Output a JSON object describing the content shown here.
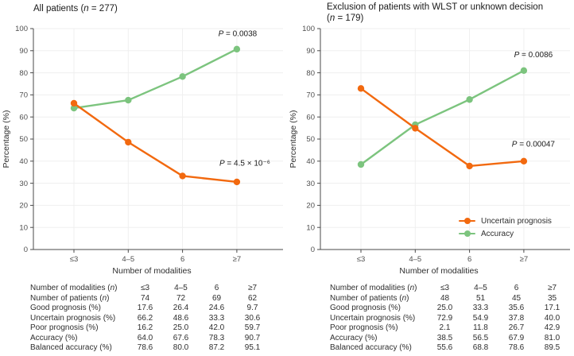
{
  "figure": {
    "y_axis_label": "Percentage (%)",
    "x_axis_label": "Number of modalities",
    "colors": {
      "uncertain_prognosis": "#f2690f",
      "accuracy": "#7cc47e",
      "axis": "#4a4a4a",
      "grid": "#efefef",
      "text": "#2e2e2e"
    },
    "legend": {
      "position": "lower-right-of-second-chart",
      "items": [
        {
          "label": "Uncertain prognosis",
          "series": "uncertain_prognosis"
        },
        {
          "label": "Accuracy",
          "series": "accuracy"
        }
      ]
    }
  },
  "chart_data": [
    {
      "type": "line",
      "title": "All patients (n = 277)",
      "title_lines": [
        "All patients (n = 277)"
      ],
      "categories": [
        "≤3",
        "4–5",
        "6",
        "≥7"
      ],
      "xlabel": "Number of modalities",
      "ylabel": "Percentage (%)",
      "ylim": [
        0,
        100
      ],
      "ytick_step": 10,
      "grid": true,
      "series": [
        {
          "name": "Accuracy",
          "color_key": "accuracy",
          "values": [
            64.0,
            67.6,
            78.3,
            90.7
          ]
        },
        {
          "name": "Uncertain prognosis",
          "color_key": "uncertain_prognosis",
          "values": [
            66.2,
            48.6,
            33.3,
            30.6
          ]
        }
      ],
      "annotations": [
        {
          "text": "P = 0.0038",
          "series": "Accuracy",
          "cat_index": 3,
          "y_value": 96.5,
          "dx": 1
        },
        {
          "text": "P = 4.5 × 10⁻⁶",
          "series": "Uncertain prognosis",
          "cat_index": 3,
          "y_value": 38.0,
          "dx": 10
        }
      ],
      "table": {
        "rows": [
          {
            "label": "Number of modalities (n)",
            "values": [
              "≤3",
              "4–5",
              "6",
              "≥7"
            ]
          },
          {
            "label": "Number of patients (n)",
            "values": [
              "74",
              "72",
              "69",
              "62"
            ]
          },
          {
            "label": "Good prognosis (%)",
            "values": [
              "17.6",
              "26.4",
              "24.6",
              "9.7"
            ]
          },
          {
            "label": "Uncertain prognosis (%)",
            "values": [
              "66.2",
              "48.6",
              "33.3",
              "30.6"
            ]
          },
          {
            "label": "Poor prognosis (%)",
            "values": [
              "16.2",
              "25.0",
              "42.0",
              "59.7"
            ]
          },
          {
            "label": "Accuracy (%)",
            "values": [
              "64.0",
              "67.6",
              "78.3",
              "90.7"
            ]
          },
          {
            "label": "Balanced accuracy (%)",
            "values": [
              "78.6",
              "80.0",
              "87.2",
              "95.1"
            ]
          }
        ]
      }
    },
    {
      "type": "line",
      "title": "Exclusion of patients with WLST or unknown decision (n = 179)",
      "title_lines": [
        "Exclusion of patients with WLST or unknown decision",
        "(n = 179)"
      ],
      "categories": [
        "≤3",
        "4–5",
        "6",
        "≥7"
      ],
      "xlabel": "Number of modalities",
      "ylabel": "Percentage (%)",
      "ylim": [
        0,
        100
      ],
      "ytick_step": 10,
      "grid": true,
      "series": [
        {
          "name": "Accuracy",
          "color_key": "accuracy",
          "values": [
            38.5,
            56.5,
            67.9,
            81.0
          ]
        },
        {
          "name": "Uncertain prognosis",
          "color_key": "uncertain_prognosis",
          "values": [
            72.9,
            54.9,
            37.8,
            40.0
          ]
        }
      ],
      "annotations": [
        {
          "text": "P = 0.0086",
          "series": "Accuracy",
          "cat_index": 3,
          "y_value": 87.0,
          "dx": 12
        },
        {
          "text": "P = 0.00047",
          "series": "Uncertain prognosis",
          "cat_index": 3,
          "y_value": 46.5,
          "dx": 12
        }
      ],
      "table": {
        "rows": [
          {
            "label": "Number of modalities (n)",
            "values": [
              "≤3",
              "4–5",
              "6",
              "≥7"
            ]
          },
          {
            "label": "Number of patients (n)",
            "values": [
              "48",
              "51",
              "45",
              "35"
            ]
          },
          {
            "label": "Good prognosis (%)",
            "values": [
              "25.0",
              "33.3",
              "35.6",
              "17.1"
            ]
          },
          {
            "label": "Uncertain prognosis (%)",
            "values": [
              "72.9",
              "54.9",
              "37.8",
              "40.0"
            ]
          },
          {
            "label": "Poor prognosis (%)",
            "values": [
              "2.1",
              "11.8",
              "26.7",
              "42.9"
            ]
          },
          {
            "label": "Accuracy (%)",
            "values": [
              "38.5",
              "56.5",
              "67.9",
              "81.0"
            ]
          },
          {
            "label": "Balanced accuracy (%)",
            "values": [
              "55.6",
              "68.8",
              "78.6",
              "89.5"
            ]
          }
        ]
      }
    }
  ]
}
